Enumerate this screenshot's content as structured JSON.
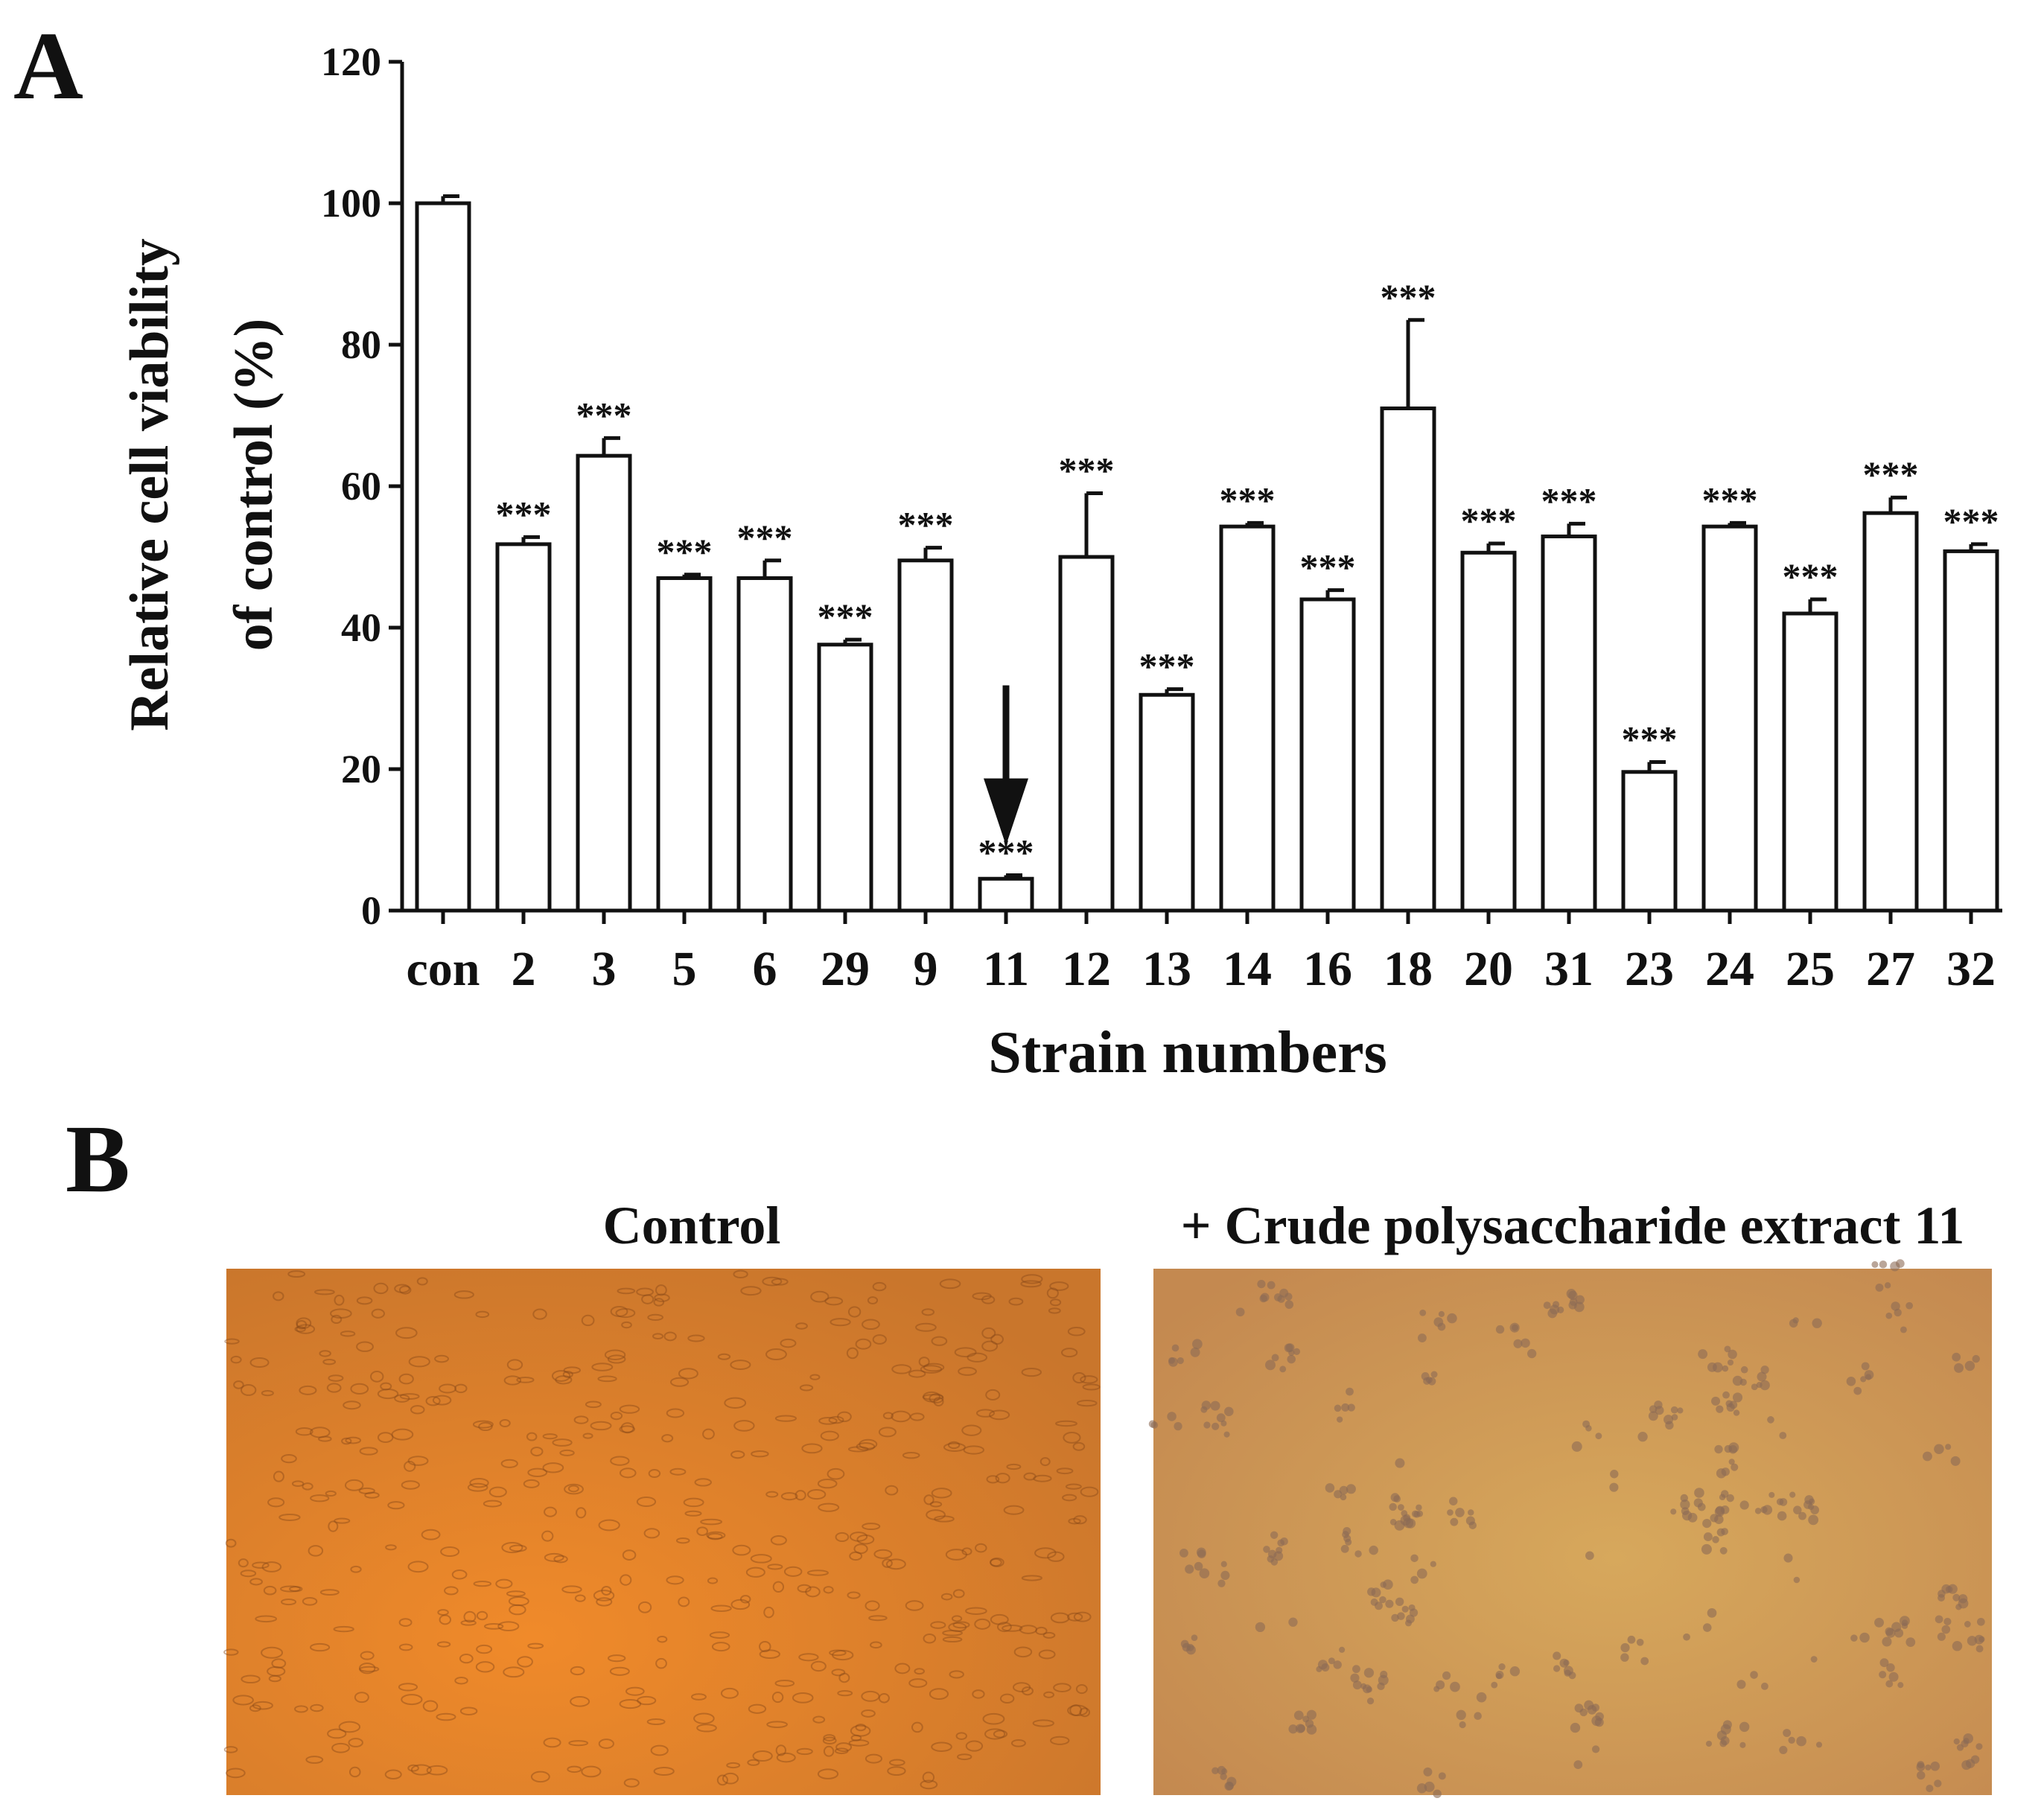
{
  "chart_data": {
    "type": "bar",
    "panel_label": "A",
    "y_label_lines": [
      "Relative cell viability",
      "of control (%)"
    ],
    "x_label": "Strain numbers",
    "categories": [
      "con",
      "2",
      "3",
      "5",
      "6",
      "29",
      "9",
      "11",
      "12",
      "13",
      "14",
      "16",
      "18",
      "20",
      "31",
      "23",
      "24",
      "25",
      "27",
      "32"
    ],
    "values": [
      100,
      51.8,
      64.3,
      47,
      47,
      37.6,
      49.5,
      4.5,
      50,
      30.5,
      54.3,
      44,
      71,
      50.6,
      52.9,
      19.6,
      54.3,
      42,
      56.2,
      50.8
    ],
    "error": [
      1,
      1,
      2.5,
      0.5,
      2.5,
      0.7,
      1.8,
      0.5,
      9,
      0.8,
      0.5,
      1.3,
      12.5,
      1.3,
      1.8,
      1.4,
      0.5,
      2,
      2.2,
      1
    ],
    "significance": [
      null,
      "***",
      "***",
      "***",
      "***",
      "***",
      "***",
      "***",
      "***",
      "***",
      "***",
      "***",
      "***",
      "***",
      "***",
      "***",
      "***",
      "***",
      "***",
      "***"
    ],
    "color": "#ffffff",
    "ylim": [
      0,
      120
    ],
    "yticks": [
      0,
      20,
      40,
      60,
      80,
      100,
      120
    ]
  },
  "panel_b": {
    "label": "B",
    "images": [
      {
        "title": "Control"
      },
      {
        "title": "+ Crude polysaccharide extract 11"
      }
    ]
  }
}
